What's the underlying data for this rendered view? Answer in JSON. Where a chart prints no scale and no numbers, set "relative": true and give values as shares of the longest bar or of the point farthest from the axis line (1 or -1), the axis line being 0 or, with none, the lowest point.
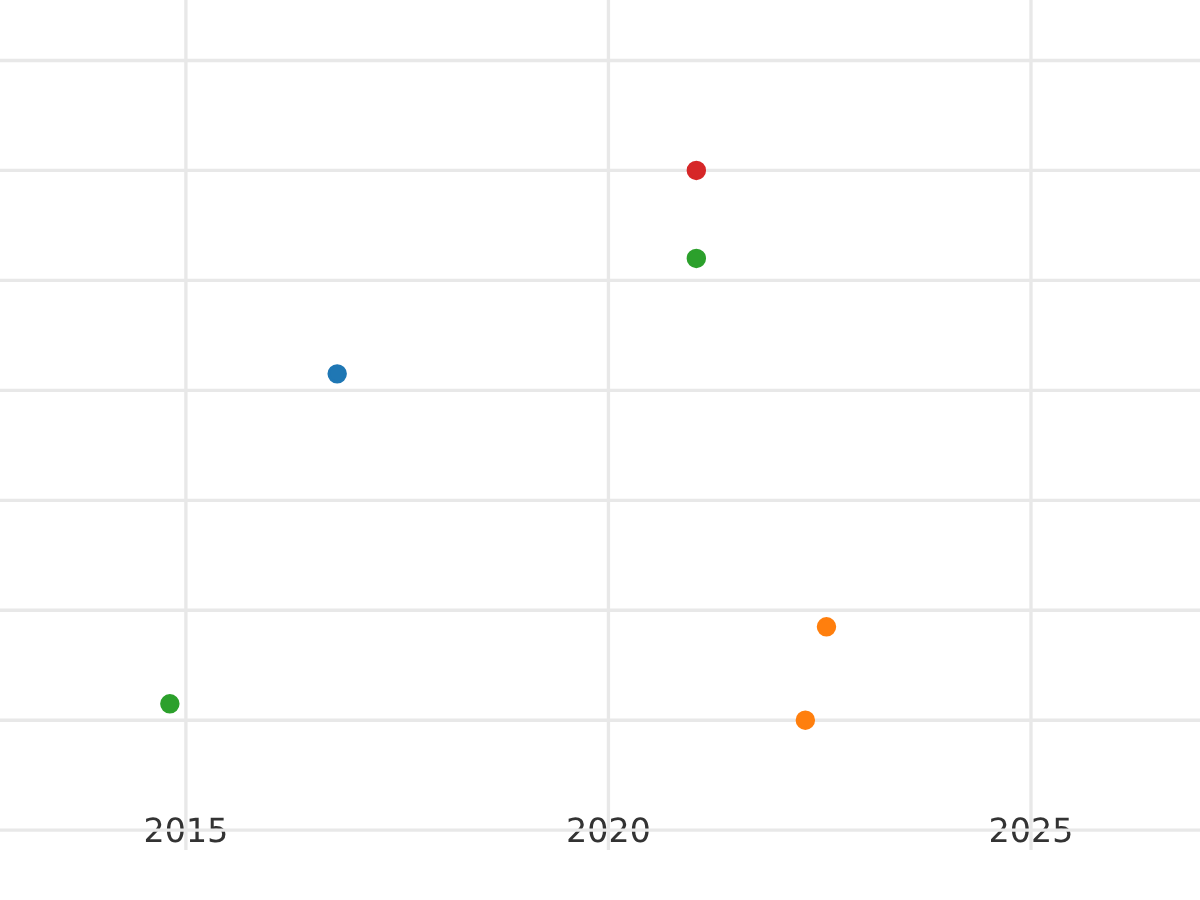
{
  "chart_data": {
    "type": "scatter",
    "relative": true,
    "series": [
      {
        "color": "#1f77b4",
        "x": [
          2016.79
        ],
        "values": [
          0.63
        ]
      },
      {
        "color": "#ff7f0e",
        "x": [
          2022.58,
          2022.33
        ],
        "values": [
          0.17,
          0.0
        ]
      },
      {
        "color": "#2ca02c",
        "x": [
          2021.04,
          2014.81
        ],
        "values": [
          0.84,
          0.03
        ]
      },
      {
        "color": "#d62728",
        "x": [
          2021.04
        ],
        "values": [
          1.0
        ]
      }
    ],
    "xlim": [
      2012.8,
      2027.0
    ],
    "xticks": [
      2015,
      2020,
      2025
    ],
    "tick_labels": "x",
    "grid": true,
    "marker": "circle",
    "legend": false
  }
}
